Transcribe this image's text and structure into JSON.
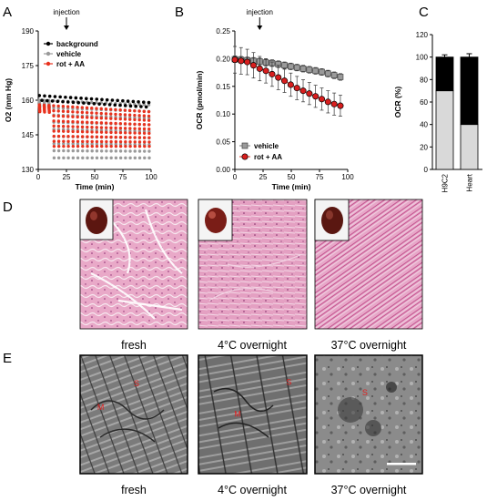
{
  "panels": {
    "A": "A",
    "B": "B",
    "C": "C",
    "D": "D",
    "E": "E"
  },
  "colors": {
    "background": "#000000",
    "vehicle": "#9a9a9a",
    "rot_aa": "#e8321e",
    "he_stain": "#e7a3c3",
    "em_gray": "#6e6e6e"
  },
  "chart_data": [
    {
      "id": "A",
      "type": "scatter",
      "annotation": "injection",
      "injection_x": 25,
      "xlabel": "Time (min)",
      "ylabel": "O2 (mm Hg)",
      "xlim": [
        0,
        100
      ],
      "ylim": [
        130,
        190
      ],
      "xticks": [
        0,
        25,
        50,
        75,
        100
      ],
      "yticks": [
        130,
        145,
        160,
        175,
        190
      ],
      "legend_position": "top-left",
      "series": [
        {
          "name": "background",
          "x_start": 1,
          "x_end": 98,
          "count": 43,
          "high": 162,
          "low": 158,
          "trend_end": 159,
          "drop_start_x": 999
        },
        {
          "name": "vehicle",
          "x_start": 1,
          "x_end": 98,
          "count": 24,
          "high": 160,
          "low": 135,
          "trend_end": 158,
          "drop_start_x": 10
        },
        {
          "name": "rot + AA",
          "x_start": 1,
          "x_end": 98,
          "count": 24,
          "high": 158,
          "low": 140,
          "trend_end": 155,
          "drop_start_x": 10
        }
      ]
    },
    {
      "id": "B",
      "type": "line",
      "annotation": "injection",
      "injection_x": 22,
      "xlabel": "Time (min)",
      "ylabel": "OCR (pmol/min)",
      "xlim": [
        0,
        100
      ],
      "ylim": [
        0.0,
        0.25
      ],
      "xticks": [
        0,
        25,
        50,
        75,
        100
      ],
      "yticks": [
        "0.00",
        "0.05",
        "0.10",
        "0.15",
        "0.20",
        "0.25"
      ],
      "legend_position": "bottom-left",
      "x": [
        0,
        5.5,
        11,
        16.5,
        22,
        27.5,
        33,
        38.5,
        44,
        49.5,
        55,
        60.5,
        66,
        71.5,
        77,
        82.5,
        88,
        93.5
      ],
      "series": [
        {
          "name": "vehicle",
          "marker": "square",
          "values": [
            0.199,
            0.198,
            0.197,
            0.196,
            0.195,
            0.193,
            0.192,
            0.19,
            0.188,
            0.186,
            0.184,
            0.182,
            0.18,
            0.178,
            0.176,
            0.173,
            0.17,
            0.167
          ],
          "err": [
            0.006,
            0.006,
            0.006,
            0.006,
            0.006,
            0.006,
            0.006,
            0.006,
            0.006,
            0.006,
            0.006,
            0.006,
            0.006,
            0.006,
            0.006,
            0.006,
            0.006,
            0.006
          ]
        },
        {
          "name": "rot + AA",
          "marker": "circle",
          "values": [
            0.198,
            0.196,
            0.194,
            0.188,
            0.182,
            0.178,
            0.172,
            0.166,
            0.16,
            0.153,
            0.147,
            0.142,
            0.137,
            0.132,
            0.127,
            0.122,
            0.118,
            0.115
          ],
          "err": [
            0.024,
            0.024,
            0.023,
            0.023,
            0.022,
            0.022,
            0.022,
            0.022,
            0.021,
            0.021,
            0.021,
            0.02,
            0.02,
            0.02,
            0.02,
            0.02,
            0.02,
            0.019
          ]
        }
      ]
    },
    {
      "id": "C",
      "type": "bar",
      "stacked": true,
      "ylabel": "OCR (%)",
      "ylim": [
        0,
        120
      ],
      "yticks": [
        0,
        20,
        40,
        60,
        80,
        100,
        120
      ],
      "categories": [
        "H9C2",
        "Heart"
      ],
      "series": [
        {
          "name": "",
          "color": "#d9d9d9",
          "values": [
            70,
            40
          ]
        },
        {
          "name": "",
          "color": "#000000",
          "values": [
            30,
            60
          ]
        }
      ],
      "err": [
        2,
        3
      ]
    }
  ],
  "panel_d": {
    "captions": [
      "fresh",
      "4°C overnight",
      "37°C overnight"
    ]
  },
  "panel_e": {
    "captions": [
      "fresh",
      "4°C overnight",
      "37°C overnight"
    ],
    "images": [
      {
        "labels": [
          {
            "text": "S",
            "u": 0.5,
            "v": 0.26
          },
          {
            "text": "M",
            "u": 0.16,
            "v": 0.46
          }
        ]
      },
      {
        "labels": [
          {
            "text": "M",
            "u": 0.33,
            "v": 0.52
          },
          {
            "text": "S",
            "u": 0.81,
            "v": 0.25
          }
        ]
      },
      {
        "labels": [
          {
            "text": "S",
            "u": 0.44,
            "v": 0.34
          }
        ]
      }
    ]
  }
}
